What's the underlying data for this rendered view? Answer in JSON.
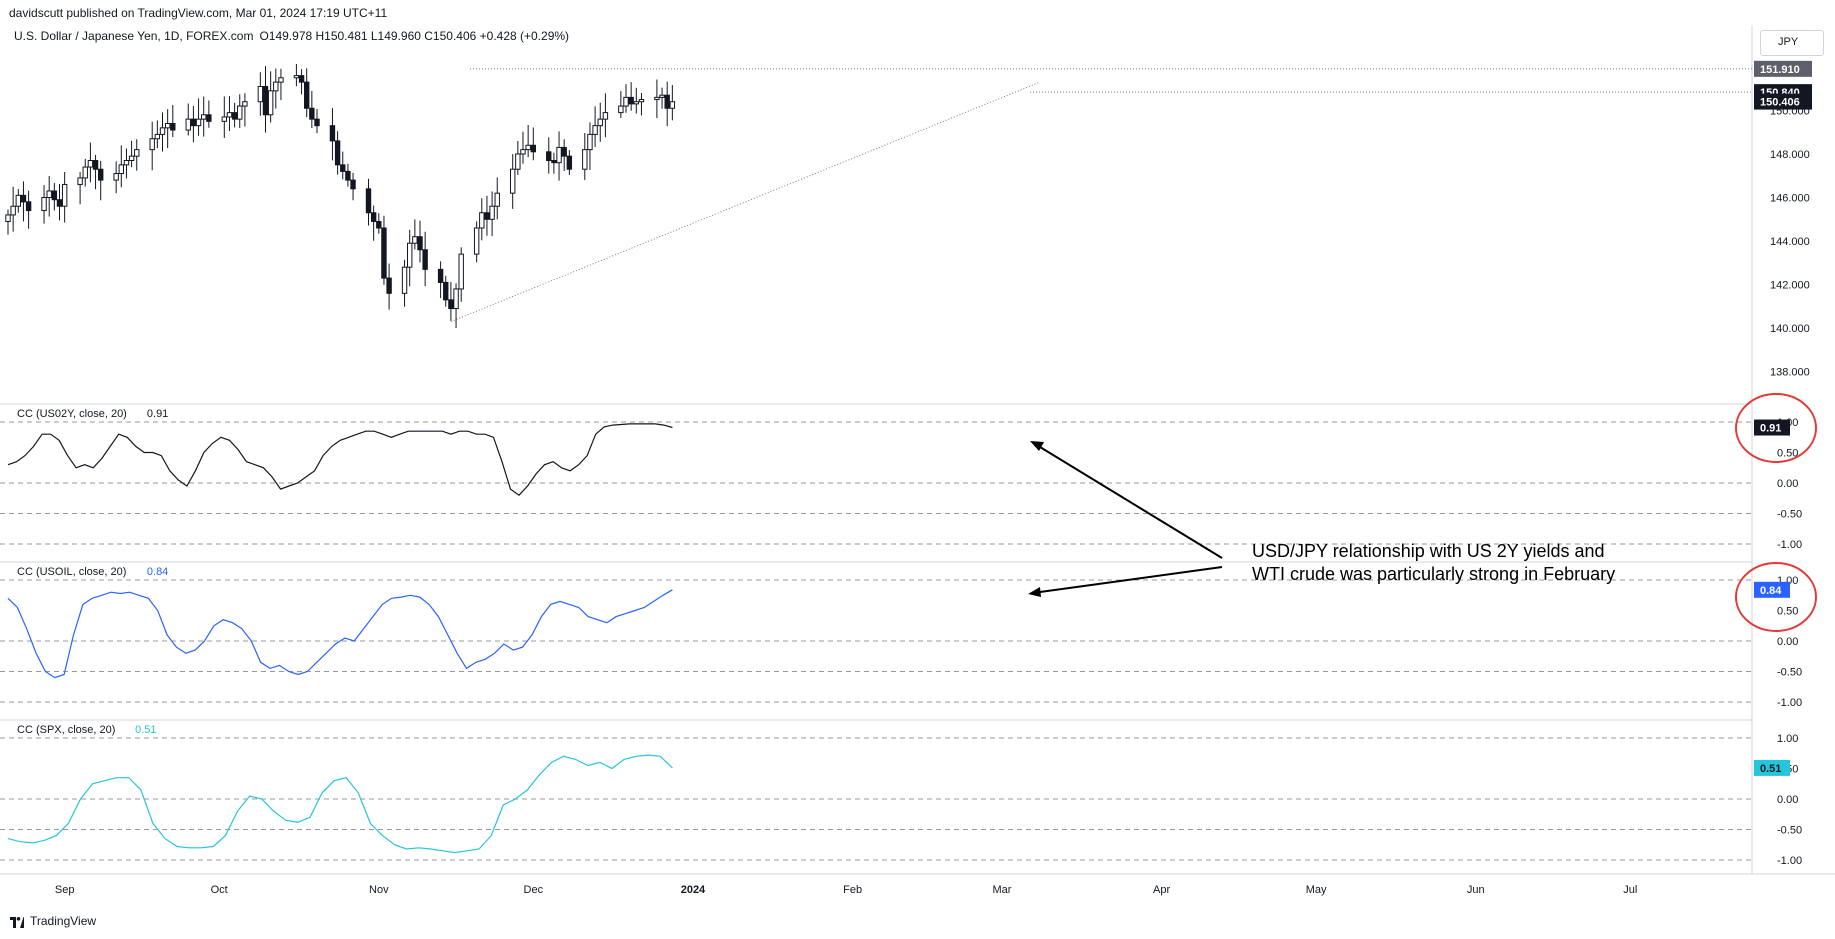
{
  "header": {
    "publisher": "davidscutt published on TradingView.com, Mar 01, 2024 17:19 UTC+11",
    "symbol": "U.S. Dollar / Japanese Yen, 1D, FOREX.com",
    "ohlc": "O149.978 H150.481 L149.960 C150.406 +0.428 (+0.29%)",
    "currency": "JPY"
  },
  "footer": {
    "logo_text": "TradingView"
  },
  "annotation": {
    "line1": "USD/JPY relationship with US 2Y yields and",
    "line2": "WTI crude was particularly strong in February"
  },
  "colors": {
    "candle": "#131722",
    "us02y": "#131722",
    "usoil": "#2962ff",
    "spx": "#26c6da",
    "circle": "#e53935",
    "grid": "#e0e3eb"
  },
  "chart_data": [
    {
      "type": "candlestick",
      "title": "U.S. Dollar / Japanese Yen, 1D, FOREX.com",
      "ylim": [
        136.7,
        152.5
      ],
      "yticks": [
        "138.000",
        "140.000",
        "142.000",
        "144.000",
        "146.000",
        "148.000",
        "150.000"
      ],
      "price_labels": [
        "151.910",
        "150.840",
        "150.406"
      ],
      "x_labels": [
        "Sep",
        "Oct",
        "Nov",
        "Dec",
        "2024",
        "Feb",
        "Mar",
        "Apr",
        "May",
        "Jun",
        "Jul"
      ],
      "start_date": "2023-08-21",
      "closes": [
        145.2,
        145.6,
        146.1,
        145.8,
        145.4,
        146.0,
        146.3,
        145.9,
        145.6,
        146.6,
        146.9,
        147.4,
        147.7,
        147.3,
        146.8,
        147.1,
        147.5,
        147.7,
        147.9,
        148.2,
        148.7,
        148.9,
        149.2,
        149.4,
        149.1,
        149.6,
        149.3,
        149.6,
        149.8,
        149.5,
        149.7,
        149.9,
        149.6,
        150.2,
        150.4,
        151.1,
        149.8,
        150.9,
        151.3,
        151.5,
        151.6,
        151.3,
        150.1,
        149.6,
        149.3,
        148.6,
        147.5,
        147.2,
        146.8,
        146.4,
        145.3,
        144.9,
        144.6,
        142.3,
        141.6,
        142.8,
        143.9,
        144.2,
        143.6,
        142.7,
        142.1,
        141.3,
        140.9,
        141.8,
        143.4,
        144.6,
        145.3,
        145.0,
        145.6,
        146.2,
        147.3,
        148.0,
        148.2,
        148.4,
        148.1,
        147.7,
        147.6,
        148.3,
        147.9,
        147.3,
        148.2,
        148.9,
        149.3,
        149.6,
        149.9,
        150.2,
        150.6,
        150.3,
        150.4,
        150.5,
        150.6,
        150.7,
        150.1,
        150.4
      ],
      "series": [
        {
          "name": "CC (US02Y, close, 20)",
          "value_label": "0.91",
          "ylim": [
            -1.05,
            1.05
          ],
          "yticks": [
            "1.00",
            "0.50",
            "0.00",
            "-0.50",
            "-1.00"
          ],
          "values": [
            0.3,
            0.35,
            0.45,
            0.6,
            0.8,
            0.8,
            0.7,
            0.45,
            0.25,
            0.3,
            0.25,
            0.4,
            0.6,
            0.8,
            0.75,
            0.6,
            0.5,
            0.5,
            0.45,
            0.2,
            0.05,
            -0.05,
            0.2,
            0.5,
            0.65,
            0.75,
            0.7,
            0.55,
            0.35,
            0.3,
            0.25,
            0.1,
            -0.1,
            -0.05,
            0.0,
            0.1,
            0.2,
            0.45,
            0.6,
            0.7,
            0.75,
            0.8,
            0.85,
            0.85,
            0.8,
            0.75,
            0.8,
            0.85,
            0.85,
            0.85,
            0.85,
            0.85,
            0.8,
            0.85,
            0.85,
            0.8,
            0.8,
            0.75,
            0.35,
            -0.1,
            -0.2,
            -0.05,
            0.15,
            0.3,
            0.35,
            0.25,
            0.2,
            0.3,
            0.45,
            0.8,
            0.92,
            0.95,
            0.96,
            0.97,
            0.97,
            0.97,
            0.97,
            0.95,
            0.91
          ]
        },
        {
          "name": "CC (USOIL, close, 20)",
          "value_label": "0.84",
          "ylim": [
            -1.05,
            1.05
          ],
          "yticks": [
            "1.00",
            "0.50",
            "0.00",
            "-0.50",
            "-1.00"
          ],
          "values": [
            0.7,
            0.55,
            0.2,
            -0.2,
            -0.5,
            -0.6,
            -0.55,
            0.1,
            0.6,
            0.7,
            0.75,
            0.8,
            0.78,
            0.8,
            0.75,
            0.7,
            0.5,
            0.1,
            -0.1,
            -0.2,
            -0.15,
            0.0,
            0.25,
            0.35,
            0.3,
            0.2,
            0.0,
            -0.35,
            -0.45,
            -0.4,
            -0.5,
            -0.55,
            -0.5,
            -0.35,
            -0.2,
            -0.05,
            0.05,
            0.0,
            0.2,
            0.4,
            0.6,
            0.7,
            0.72,
            0.75,
            0.72,
            0.6,
            0.4,
            0.1,
            -0.2,
            -0.45,
            -0.35,
            -0.3,
            -0.2,
            -0.05,
            -0.15,
            -0.1,
            0.1,
            0.4,
            0.6,
            0.65,
            0.6,
            0.55,
            0.4,
            0.35,
            0.3,
            0.4,
            0.45,
            0.5,
            0.55,
            0.65,
            0.75,
            0.84
          ]
        },
        {
          "name": "CC (SPX, close, 20)",
          "value_label": "0.51",
          "ylim": [
            -1.05,
            1.05
          ],
          "yticks": [
            "1.00",
            "0.50",
            "0.00",
            "-0.50",
            "-1.00"
          ],
          "values": [
            -0.65,
            -0.7,
            -0.72,
            -0.68,
            -0.6,
            -0.4,
            0.0,
            0.25,
            0.3,
            0.35,
            0.35,
            0.15,
            -0.4,
            -0.65,
            -0.78,
            -0.8,
            -0.8,
            -0.78,
            -0.6,
            -0.2,
            0.05,
            0.0,
            -0.2,
            -0.35,
            -0.38,
            -0.3,
            0.1,
            0.3,
            0.35,
            0.1,
            -0.4,
            -0.6,
            -0.75,
            -0.82,
            -0.8,
            -0.82,
            -0.85,
            -0.88,
            -0.85,
            -0.82,
            -0.6,
            -0.1,
            0.0,
            0.15,
            0.4,
            0.6,
            0.7,
            0.65,
            0.55,
            0.6,
            0.5,
            0.65,
            0.7,
            0.72,
            0.7,
            0.51
          ]
        }
      ]
    }
  ]
}
